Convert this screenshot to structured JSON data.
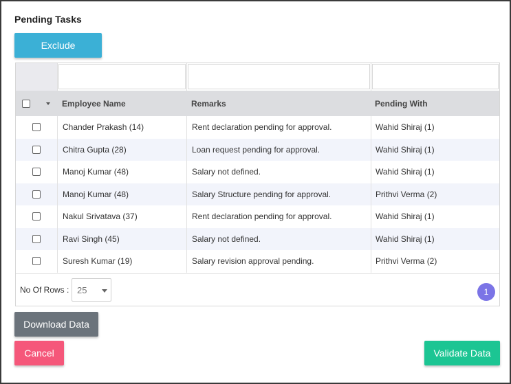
{
  "page": {
    "title": "Pending Tasks"
  },
  "buttons": {
    "exclude": "Exclude",
    "download": "Download Data",
    "cancel": "Cancel",
    "validate": "Validate Data"
  },
  "table": {
    "headers": [
      "Employee Name",
      "Remarks",
      "Pending With"
    ],
    "rows": [
      [
        "Chander Prakash (14)",
        "Rent declaration pending for approval.",
        "Wahid Shiraj (1)"
      ],
      [
        "Chitra Gupta (28)",
        "Loan request pending for approval.",
        "Wahid Shiraj (1)"
      ],
      [
        "Manoj Kumar (48)",
        "Salary not defined.",
        "Wahid Shiraj (1)"
      ],
      [
        "Manoj Kumar (48)",
        "Salary Structure pending for approval.",
        "Prithvi Verma (2)"
      ],
      [
        "Nakul Srivatava (37)",
        "Rent declaration pending for approval.",
        "Wahid Shiraj (1)"
      ],
      [
        "Ravi Singh (45)",
        "Salary not defined.",
        "Wahid Shiraj (1)"
      ],
      [
        "Suresh Kumar (19)",
        "Salary revision approval pending.",
        "Prithvi Verma (2)"
      ]
    ]
  },
  "pagination": {
    "rows_label": "No Of Rows :",
    "rows_value": "25",
    "current_page": "1"
  },
  "colors": {
    "exclude": "#3bb0d6",
    "download": "#6b737b",
    "cancel": "#f5577a",
    "validate": "#1cc593",
    "page": "#7b74e6"
  }
}
